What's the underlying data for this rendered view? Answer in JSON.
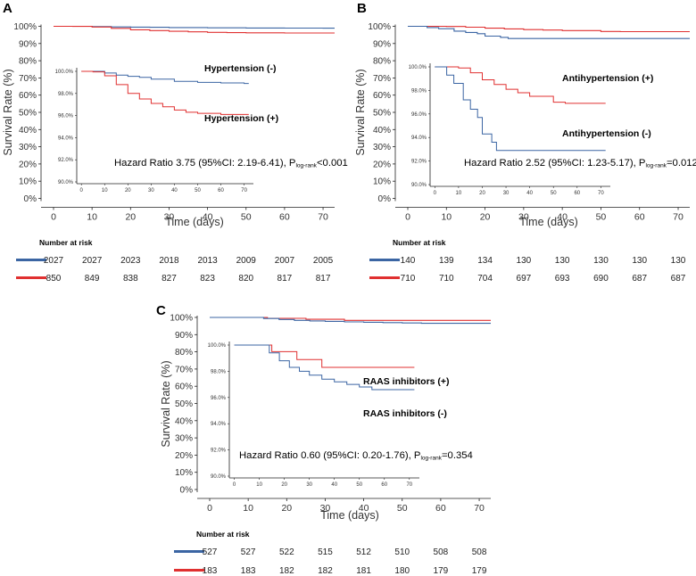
{
  "chart_data": [
    {
      "type": "line",
      "panel": "A",
      "ylabel": "Survival Rate (%)",
      "xlabel": "Time (days)",
      "yticks": [
        "0%",
        "10%",
        "20%",
        "30%",
        "40%",
        "50%",
        "60%",
        "70%",
        "80%",
        "90%",
        "100%"
      ],
      "xticks": [
        "0",
        "10",
        "20",
        "30",
        "40",
        "50",
        "60",
        "70"
      ],
      "xlim": [
        0,
        73
      ],
      "ylim": [
        0,
        100
      ],
      "series": [
        {
          "name": "Hypertension (-)",
          "color": "#3b65a3",
          "x": [
            0,
            5,
            10,
            15,
            20,
            25,
            30,
            40,
            50,
            60,
            70,
            73
          ],
          "y": [
            100,
            100,
            99.85,
            99.65,
            99.55,
            99.45,
            99.3,
            99.1,
            99.0,
            98.95,
            98.9,
            98.9
          ]
        },
        {
          "name": "Hypertension (+)",
          "color": "#e03030",
          "x": [
            0,
            5,
            10,
            15,
            20,
            25,
            30,
            35,
            40,
            45,
            50,
            60,
            70,
            73
          ],
          "y": [
            100,
            99.95,
            99.6,
            98.8,
            98.0,
            97.5,
            97.1,
            96.8,
            96.5,
            96.3,
            96.2,
            96.1,
            96.1,
            96.1
          ]
        }
      ],
      "inset": {
        "yticks": [
          "90.0%",
          "92.0%",
          "94.0%",
          "96.0%",
          "98.0%",
          "100.0%"
        ],
        "xticks": [
          "0",
          "10",
          "20",
          "30",
          "40",
          "50",
          "60",
          "70"
        ],
        "ylim": [
          90,
          100
        ],
        "xlim": [
          -2,
          74
        ],
        "labels": {
          "neg": "Hypertension (-)",
          "pos": "Hypertension (+)"
        }
      },
      "hazard": {
        "text": "Hazard Ratio 3.75 (95%CI: 2.19-6.41), P",
        "sub": "log-rank",
        "p": "<0.001"
      },
      "risk": {
        "title": "Number at risk",
        "neg": [
          "2027",
          "2027",
          "2023",
          "2018",
          "2013",
          "2009",
          "2007",
          "2005"
        ],
        "pos": [
          "850",
          "849",
          "838",
          "827",
          "823",
          "820",
          "817",
          "817"
        ]
      }
    },
    {
      "type": "line",
      "panel": "B",
      "ylabel": "Survival Rate (%)",
      "xlabel": "Time (days)",
      "yticks": [
        "0%",
        "10%",
        "20%",
        "30%",
        "40%",
        "50%",
        "60%",
        "70%",
        "80%",
        "90%",
        "100%"
      ],
      "xticks": [
        "0",
        "10",
        "20",
        "30",
        "40",
        "50",
        "60",
        "70"
      ],
      "xlim": [
        0,
        73
      ],
      "ylim": [
        0,
        100
      ],
      "series": [
        {
          "name": "Antihypertension (+)",
          "color": "#e03030",
          "x": [
            0,
            5,
            10,
            15,
            20,
            25,
            30,
            35,
            40,
            50,
            55,
            60,
            70,
            73
          ],
          "y": [
            100,
            100,
            99.9,
            99.5,
            98.9,
            98.5,
            98.1,
            97.8,
            97.5,
            97.0,
            96.9,
            96.9,
            96.9,
            96.9
          ]
        },
        {
          "name": "Antihypertension (-)",
          "color": "#3b65a3",
          "x": [
            0,
            5,
            8,
            12,
            15,
            18,
            20,
            22,
            24,
            26,
            73
          ],
          "y": [
            100,
            99.3,
            98.6,
            97.2,
            96.4,
            95.7,
            94.3,
            94.3,
            93.6,
            92.9,
            92.9
          ]
        }
      ],
      "inset": {
        "yticks": [
          "90.0%",
          "92.0%",
          "94.0%",
          "96.0%",
          "98.0%",
          "100.0%"
        ],
        "xticks": [
          "0",
          "10",
          "20",
          "30",
          "40",
          "50",
          "60",
          "70"
        ],
        "ylim": [
          90,
          100
        ],
        "xlim": [
          -2,
          74
        ],
        "labels": {
          "pos": "Antihypertension (+)",
          "neg": "Antihypertension (-)"
        }
      },
      "hazard": {
        "text": "Hazard Ratio 2.52 (95%CI: 1.23-5.17), P",
        "sub": "log-rank",
        "p": "=0.012"
      },
      "risk": {
        "title": "Number at risk",
        "neg": [
          "140",
          "139",
          "134",
          "130",
          "130",
          "130",
          "130",
          "130"
        ],
        "pos": [
          "710",
          "710",
          "704",
          "697",
          "693",
          "690",
          "687",
          "687"
        ]
      }
    },
    {
      "type": "line",
      "panel": "C",
      "ylabel": "Survival Rate (%)",
      "xlabel": "Time (days)",
      "yticks": [
        "0%",
        "10%",
        "20%",
        "30%",
        "40%",
        "50%",
        "60%",
        "70%",
        "80%",
        "90%",
        "100%"
      ],
      "xticks": [
        "0",
        "10",
        "20",
        "30",
        "40",
        "50",
        "60",
        "70"
      ],
      "xlim": [
        0,
        73
      ],
      "ylim": [
        0,
        100
      ],
      "series": [
        {
          "name": "RAAS inhibitors (+)",
          "color": "#e03030",
          "x": [
            0,
            10,
            15,
            25,
            35,
            73
          ],
          "y": [
            100,
            100,
            99.5,
            98.9,
            98.3,
            98.3
          ]
        },
        {
          "name": "RAAS inhibitors (-)",
          "color": "#3b65a3",
          "x": [
            0,
            10,
            14,
            18,
            22,
            26,
            30,
            35,
            40,
            45,
            50,
            55,
            60,
            70,
            73
          ],
          "y": [
            100,
            100,
            99.4,
            98.8,
            98.3,
            98.0,
            97.7,
            97.4,
            97.2,
            97.0,
            96.8,
            96.6,
            96.6,
            96.6,
            96.6
          ]
        }
      ],
      "inset": {
        "yticks": [
          "90.0%",
          "92.0%",
          "94.0%",
          "96.0%",
          "98.0%",
          "100.0%"
        ],
        "xticks": [
          "0",
          "10",
          "20",
          "30",
          "40",
          "50",
          "60",
          "70"
        ],
        "ylim": [
          90,
          100
        ],
        "xlim": [
          -2,
          74
        ],
        "labels": {
          "pos": "RAAS inhibitors (+)",
          "neg": "RAAS inhibitors (-)"
        }
      },
      "hazard": {
        "text": "Hazard Ratio 0.60 (95%CI: 0.20-1.76), P",
        "sub": "log-rank",
        "p": "=0.354"
      },
      "risk": {
        "title": "Number at risk",
        "neg": [
          "527",
          "527",
          "522",
          "515",
          "512",
          "510",
          "508",
          "508"
        ],
        "pos": [
          "183",
          "183",
          "182",
          "182",
          "181",
          "180",
          "179",
          "179"
        ]
      }
    }
  ],
  "colors": {
    "blue": "#3b65a3",
    "red": "#e03030",
    "axis": "#222222"
  }
}
